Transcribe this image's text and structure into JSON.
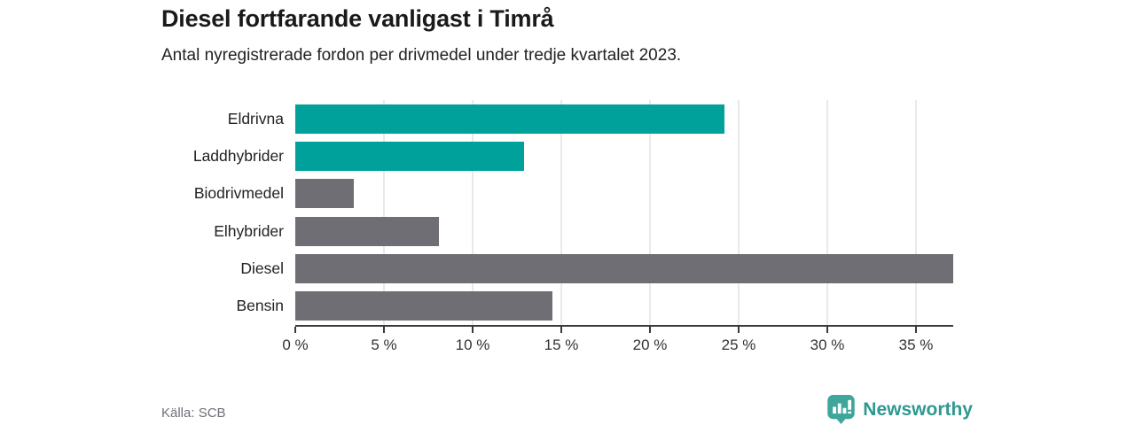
{
  "header": {
    "title": "Diesel fortfarande vanligast i Timrå",
    "subtitle": "Antal nyregistrerade fordon per drivmedel under tredje kvartalet 2023."
  },
  "footer": {
    "source": "Källa: SCB",
    "brand": "Newsworthy"
  },
  "colors": {
    "highlight": "#00a19a",
    "default": "#6e6e74",
    "gridline": "#e9e9e9",
    "axis": "#3a3a3a",
    "brand_icon": "#3fa69c",
    "brand_text": "#2f9890"
  },
  "chart_data": {
    "type": "bar",
    "orientation": "horizontal",
    "title": "Diesel fortfarande vanligast i Timrå",
    "subtitle": "Antal nyregistrerade fordon per drivmedel under tredje kvartalet 2023.",
    "categories": [
      "Eldrivna",
      "Laddhybrider",
      "Biodrivmedel",
      "Elhybrider",
      "Diesel",
      "Bensin"
    ],
    "values": [
      24.2,
      12.9,
      3.3,
      8.1,
      37.1,
      14.5
    ],
    "bar_colors": [
      "highlight",
      "highlight",
      "default",
      "default",
      "default",
      "default"
    ],
    "unit": "%",
    "xlim": [
      0,
      37.1
    ],
    "xticks": [
      0,
      5,
      10,
      15,
      20,
      25,
      30,
      35
    ],
    "xtick_suffix": " %",
    "grid": true,
    "legend": false
  }
}
